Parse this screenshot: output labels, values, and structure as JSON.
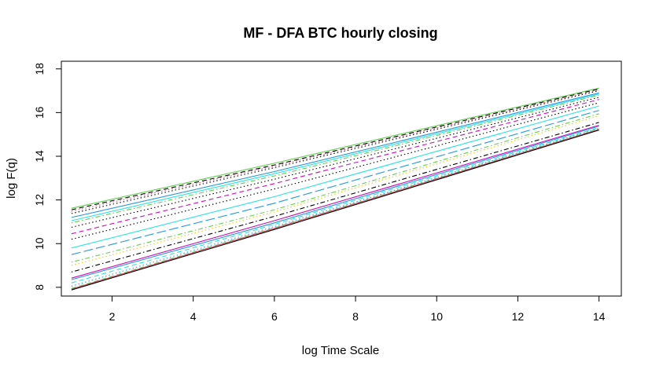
{
  "chart_data": {
    "type": "line",
    "title": "MF - DFA BTC hourly closing",
    "xlabel": "log Time Scale",
    "ylabel": "log F(q)",
    "xlim": [
      0.75,
      14.55
    ],
    "ylim": [
      7.6,
      18.35
    ],
    "x_ticks": [
      "2",
      "4",
      "6",
      "8",
      "10",
      "12",
      "14"
    ],
    "y_ticks": [
      "8",
      "10",
      "12",
      "14",
      "16",
      "18"
    ],
    "grid": false,
    "legend": "none",
    "x": [
      1,
      6,
      14
    ],
    "series": [
      {
        "color": "#61d04f",
        "dash": "solid",
        "values": [
          11.62,
          13.68,
          17.12
        ]
      },
      {
        "color": "#000000",
        "dash": "dashed",
        "values": [
          11.55,
          13.6,
          17.08
        ]
      },
      {
        "color": "#df536b",
        "dash": "dotted",
        "values": [
          11.48,
          13.55,
          17.05
        ]
      },
      {
        "color": "#000000",
        "dash": "dotted",
        "values": [
          11.38,
          13.48,
          17.0
        ]
      },
      {
        "color": "#2297e6",
        "dash": "solid",
        "values": [
          11.2,
          13.3,
          16.9
        ]
      },
      {
        "color": "#28e2e5",
        "dash": "solid",
        "values": [
          11.05,
          13.2,
          16.85
        ]
      },
      {
        "color": "#61d04f",
        "dash": "dotdash",
        "values": [
          10.95,
          13.1,
          16.8
        ]
      },
      {
        "color": "#000000",
        "dash": "dotted",
        "values": [
          10.75,
          12.95,
          16.7
        ]
      },
      {
        "color": "#cd0bbc",
        "dash": "dashed",
        "values": [
          10.45,
          12.75,
          16.6
        ]
      },
      {
        "color": "#000000",
        "dash": "dotted",
        "values": [
          10.2,
          12.5,
          16.45
        ]
      },
      {
        "color": "#28e2e5",
        "dash": "solid",
        "values": [
          9.8,
          12.15,
          16.3
        ]
      },
      {
        "color": "#2297e6",
        "dash": "longdash",
        "values": [
          9.5,
          11.85,
          16.1
        ]
      },
      {
        "color": "#61d04f",
        "dash": "dotdash",
        "values": [
          9.15,
          11.55,
          15.95
        ]
      },
      {
        "color": "#f5c710",
        "dash": "dotted",
        "values": [
          9.0,
          11.45,
          15.85
        ]
      },
      {
        "color": "#000000",
        "dash": "dotdash",
        "values": [
          8.7,
          11.25,
          15.55
        ]
      },
      {
        "color": "#cd0bbc",
        "dash": "solid",
        "values": [
          8.42,
          11.05,
          15.42
        ]
      },
      {
        "color": "#2297e6",
        "dash": "solid",
        "values": [
          8.35,
          10.95,
          15.38
        ]
      },
      {
        "color": "#28e2e5",
        "dash": "dashed",
        "values": [
          8.2,
          10.88,
          15.32
        ]
      },
      {
        "color": "#2297e6",
        "dash": "dotted",
        "values": [
          8.05,
          10.78,
          15.28
        ]
      },
      {
        "color": "#61d04f",
        "dash": "dashed",
        "values": [
          7.95,
          10.72,
          15.25
        ]
      },
      {
        "color": "#df536b",
        "dash": "solid",
        "values": [
          7.92,
          10.7,
          15.23
        ]
      },
      {
        "color": "#000000",
        "dash": "solid",
        "values": [
          7.88,
          10.65,
          15.2
        ]
      }
    ]
  }
}
